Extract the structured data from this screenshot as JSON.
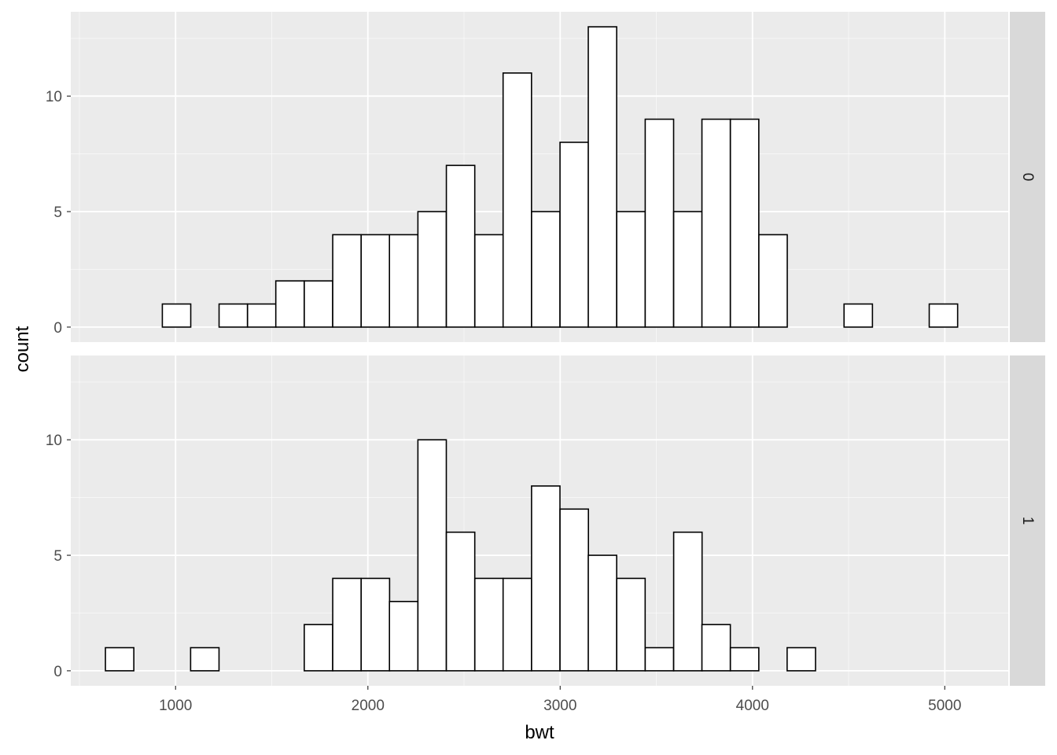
{
  "chart_data": {
    "type": "bar",
    "subtype": "faceted-histogram",
    "xlabel": "bwt",
    "ylabel": "count",
    "xlim": [
      455,
      5330
    ],
    "ylim": [
      -0.65,
      13.65
    ],
    "x_ticks": [
      1000,
      2000,
      3000,
      4000,
      5000
    ],
    "y_ticks": [
      0,
      5,
      10
    ],
    "grid": true,
    "bin_width": 147.7,
    "bin_centers": [
      709,
      857,
      1005,
      1152,
      1300,
      1448,
      1595,
      1743,
      1891,
      2039,
      2186,
      2334,
      2482,
      2630,
      2777,
      2925,
      3073,
      3220,
      3368,
      3516,
      3664,
      3811,
      3959,
      4107,
      4254,
      4402,
      4550,
      4698,
      4845,
      4993
    ],
    "panels": [
      {
        "strip": "0",
        "values": [
          0,
          0,
          1,
          0,
          1,
          1,
          2,
          2,
          4,
          4,
          4,
          5,
          7,
          4,
          11,
          5,
          8,
          13,
          5,
          9,
          5,
          9,
          9,
          4,
          0,
          0,
          1,
          0,
          0,
          1
        ]
      },
      {
        "strip": "1",
        "values": [
          1,
          0,
          0,
          1,
          0,
          0,
          0,
          2,
          4,
          4,
          3,
          10,
          6,
          4,
          4,
          8,
          7,
          5,
          4,
          1,
          6,
          2,
          1,
          0,
          1,
          0,
          0,
          0,
          0,
          0
        ]
      }
    ]
  },
  "colors": {
    "panel_bg": "#ebebeb",
    "grid_major": "#ffffff",
    "strip_bg": "#d9d9d9",
    "bar_fill": "#ffffff",
    "bar_stroke": "#000000"
  }
}
